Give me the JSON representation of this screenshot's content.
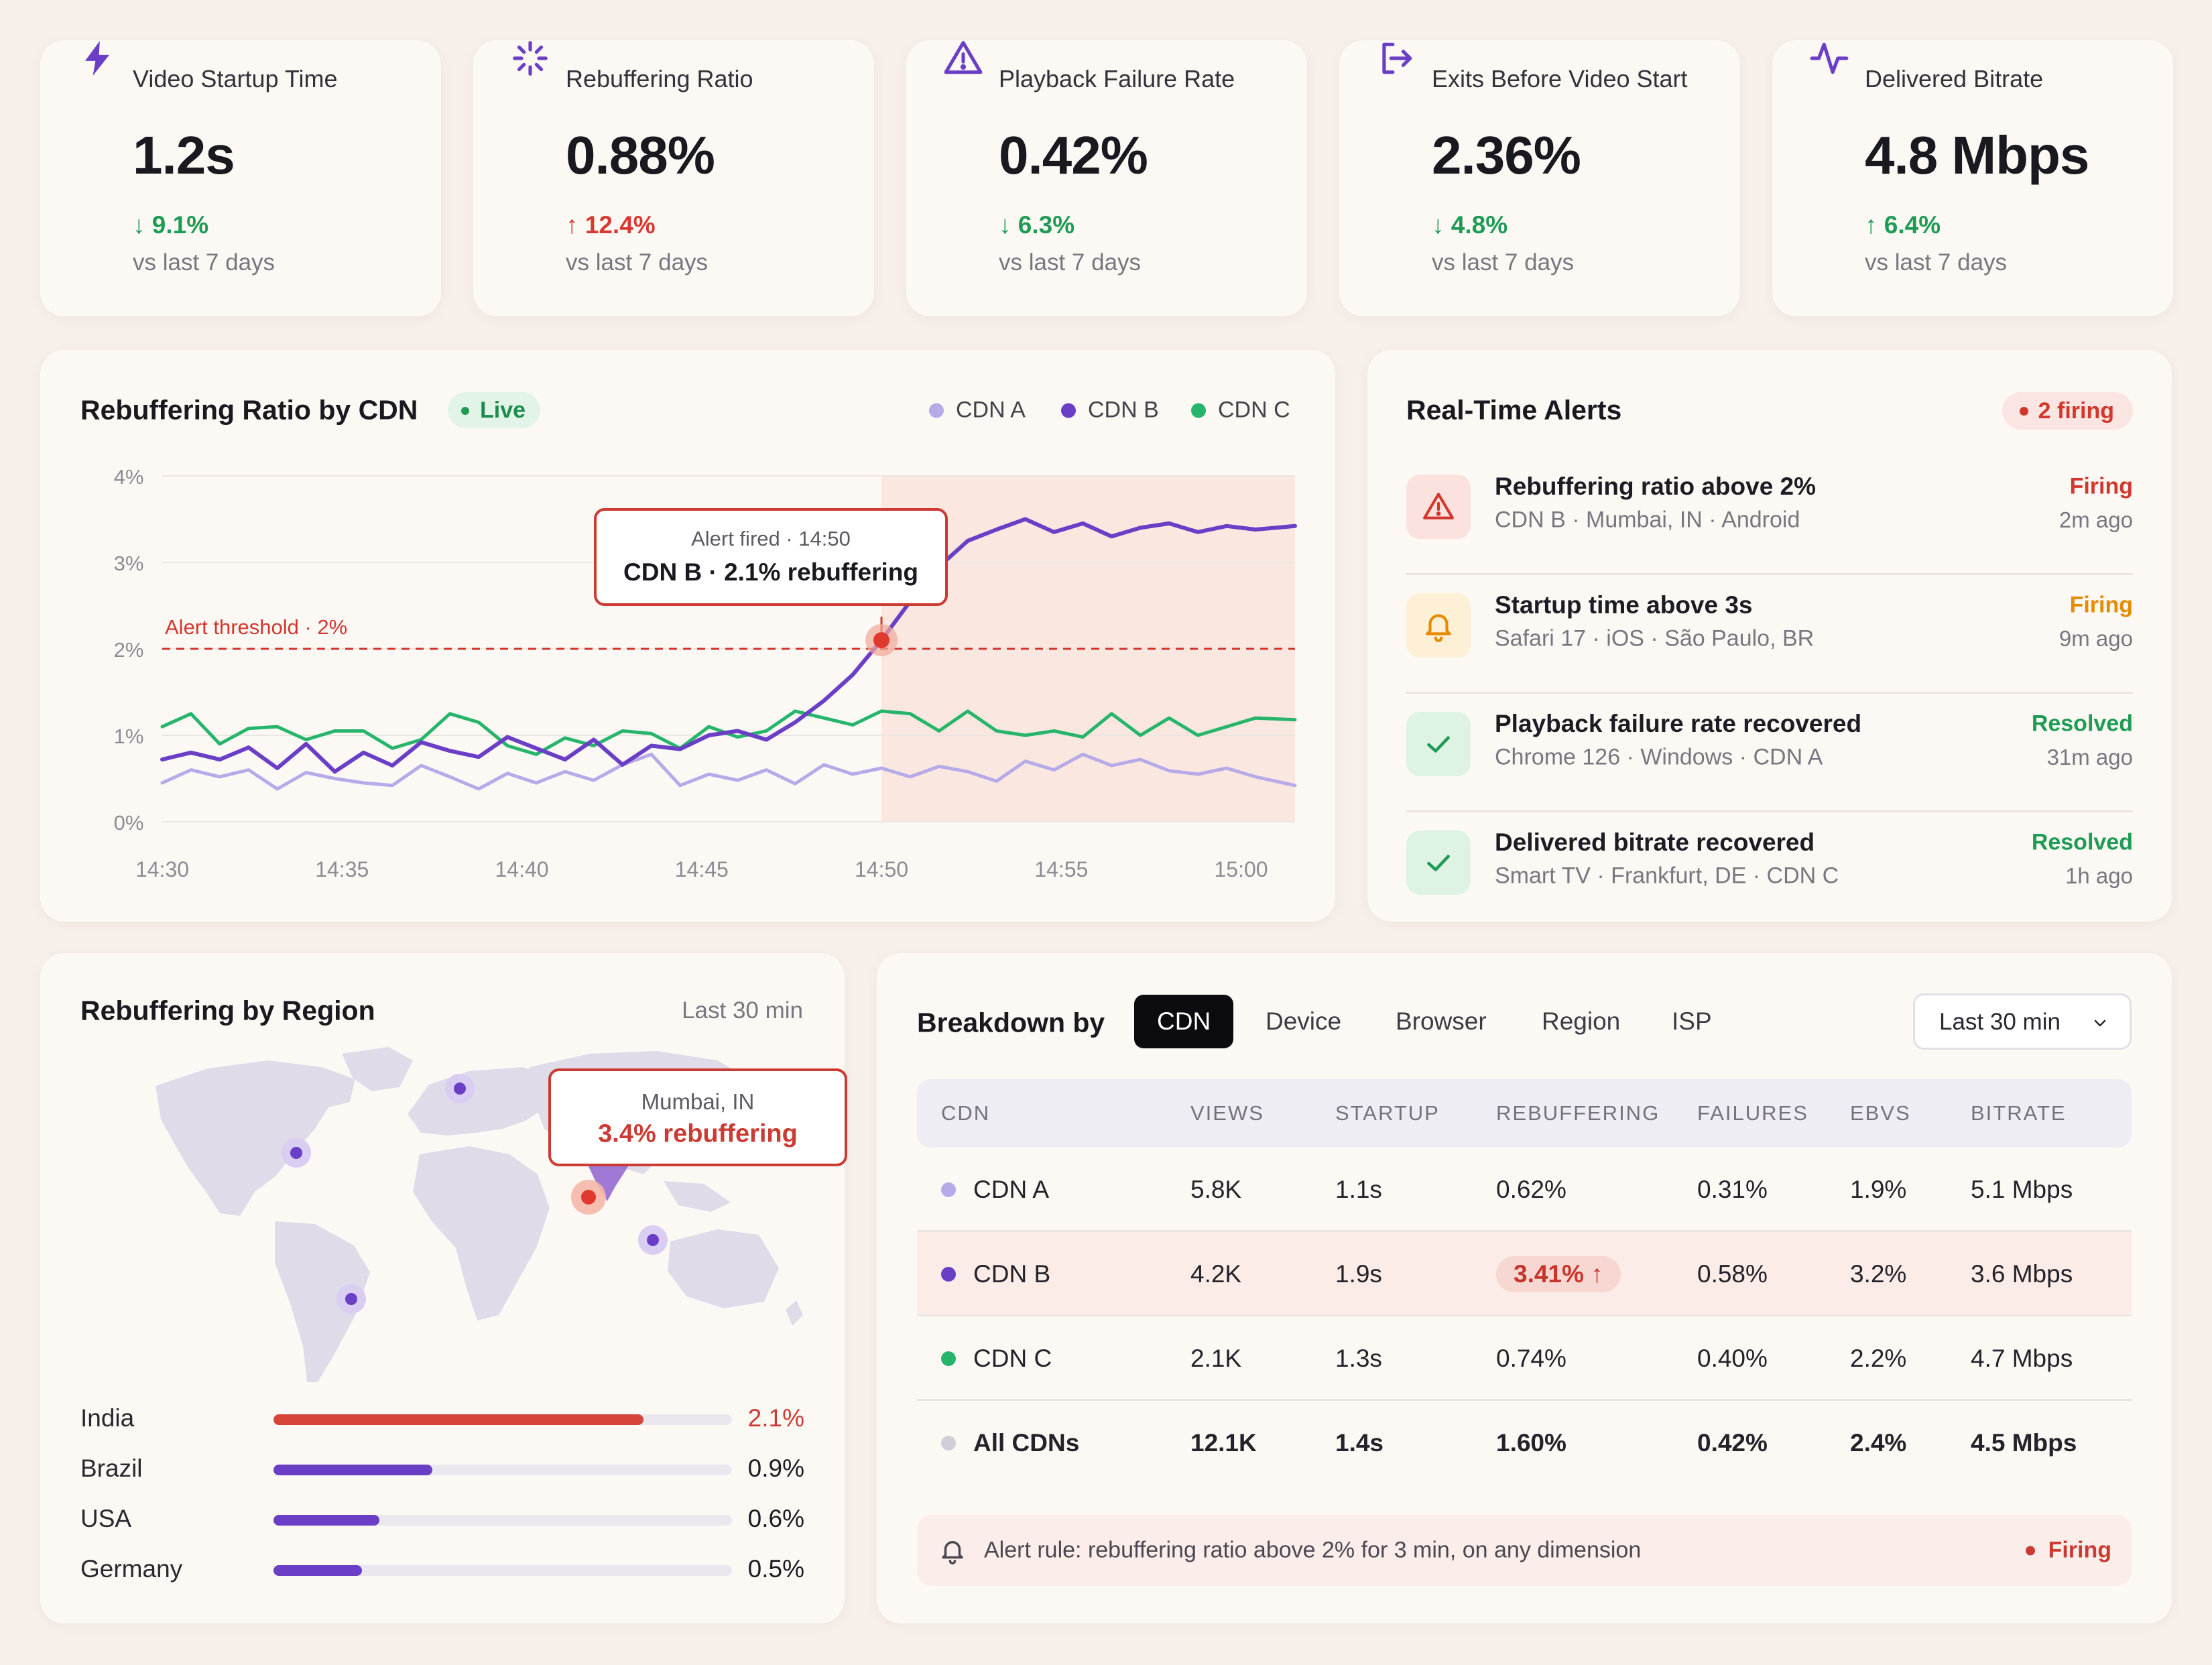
{
  "colors": {
    "cdn_a": "#b7aae8",
    "cdn_b": "#6a3fc6",
    "cdn_c": "#27b56c",
    "alert_red": "#d2372d",
    "good_green": "#1f9b55",
    "warning_orange": "#e68a00",
    "all_cdns_gray": "#d2cdd6"
  },
  "kpis": [
    {
      "icon": "lightning-icon",
      "label": "Video Startup Time",
      "value": "1.2s",
      "delta": "9.1%",
      "direction": "down",
      "sentiment": "good",
      "sub": "vs last 7 days"
    },
    {
      "icon": "spinner-icon",
      "label": "Rebuffering Ratio",
      "value": "0.88%",
      "delta": "12.4%",
      "direction": "up",
      "sentiment": "bad",
      "sub": "vs last 7 days"
    },
    {
      "icon": "warning-triangle-icon",
      "label": "Playback Failure Rate",
      "value": "0.42%",
      "delta": "6.3%",
      "direction": "down",
      "sentiment": "good",
      "sub": "vs last 7 days"
    },
    {
      "icon": "exit-icon",
      "label": "Exits Before Video Start",
      "value": "2.36%",
      "delta": "4.8%",
      "direction": "down",
      "sentiment": "good",
      "sub": "vs last 7 days"
    },
    {
      "icon": "pulse-icon",
      "label": "Delivered Bitrate",
      "value": "4.8 Mbps",
      "delta": "6.4%",
      "direction": "up",
      "sentiment": "good",
      "sub": "vs last 7 days"
    }
  ],
  "chart_card": {
    "title": "Rebuffering Ratio by CDN",
    "live_label": "Live",
    "threshold_label": "Alert threshold · 2%",
    "tooltip_line1": "Alert fired · 14:50",
    "tooltip_line2": "CDN B · 2.1% rebuffering"
  },
  "chart_data": {
    "type": "line",
    "title": "Rebuffering Ratio by CDN",
    "x_label": "",
    "y_label": "",
    "x_ticks": [
      "14:30",
      "14:35",
      "14:40",
      "14:45",
      "14:50",
      "14:55",
      "15:00"
    ],
    "y_ticks": [
      "0%",
      "1%",
      "2%",
      "3%",
      "4%"
    ],
    "x_range_minutes": [
      0,
      31.5
    ],
    "ylim": [
      0,
      4
    ],
    "threshold": 2.0,
    "alert_region_start_minute": 20,
    "alert_point": {
      "minute": 20,
      "value": 2.1
    },
    "legend": [
      "CDN A",
      "CDN B",
      "CDN C"
    ],
    "series": [
      {
        "name": "CDN A",
        "x_minutes": [
          0,
          0.8,
          1.6,
          2.4,
          3.2,
          4,
          4.8,
          5.6,
          6.4,
          7.2,
          8,
          8.8,
          9.6,
          10.4,
          11.2,
          12,
          12.8,
          13.6,
          14.4,
          15.2,
          16,
          16.8,
          17.6,
          18.4,
          19.2,
          20,
          20.8,
          21.6,
          22.4,
          23.2,
          24,
          24.8,
          25.6,
          26.4,
          27.2,
          28,
          28.8,
          29.6,
          30.4,
          31.5
        ],
        "values": [
          0.45,
          0.6,
          0.52,
          0.6,
          0.38,
          0.57,
          0.5,
          0.45,
          0.42,
          0.65,
          0.52,
          0.38,
          0.56,
          0.45,
          0.58,
          0.48,
          0.66,
          0.78,
          0.42,
          0.55,
          0.48,
          0.6,
          0.44,
          0.66,
          0.55,
          0.62,
          0.52,
          0.64,
          0.58,
          0.47,
          0.7,
          0.6,
          0.78,
          0.65,
          0.72,
          0.59,
          0.55,
          0.62,
          0.52,
          0.42
        ]
      },
      {
        "name": "CDN B",
        "x_minutes": [
          0,
          0.8,
          1.6,
          2.4,
          3.2,
          4,
          4.8,
          5.6,
          6.4,
          7.2,
          8,
          8.8,
          9.6,
          10.4,
          11.2,
          12,
          12.8,
          13.6,
          14.4,
          15.2,
          16,
          16.8,
          17.6,
          18.4,
          19.2,
          20,
          20.8,
          21.6,
          22.4,
          23.2,
          24,
          24.8,
          25.6,
          26.4,
          27.2,
          28,
          28.8,
          29.6,
          30.4,
          31.5
        ],
        "values": [
          0.72,
          0.8,
          0.72,
          0.86,
          0.62,
          0.9,
          0.58,
          0.8,
          0.65,
          0.92,
          0.82,
          0.75,
          0.98,
          0.85,
          0.72,
          0.95,
          0.66,
          0.88,
          0.84,
          1.0,
          1.05,
          0.95,
          1.15,
          1.4,
          1.7,
          2.1,
          2.55,
          2.95,
          3.25,
          3.38,
          3.5,
          3.35,
          3.45,
          3.3,
          3.4,
          3.45,
          3.35,
          3.42,
          3.38,
          3.42
        ]
      },
      {
        "name": "CDN C",
        "x_minutes": [
          0,
          0.8,
          1.6,
          2.4,
          3.2,
          4,
          4.8,
          5.6,
          6.4,
          7.2,
          8,
          8.8,
          9.6,
          10.4,
          11.2,
          12,
          12.8,
          13.6,
          14.4,
          15.2,
          16,
          16.8,
          17.6,
          18.4,
          19.2,
          20,
          20.8,
          21.6,
          22.4,
          23.2,
          24,
          24.8,
          25.6,
          26.4,
          27.2,
          28,
          28.8,
          29.6,
          30.4,
          31.5
        ],
        "values": [
          1.1,
          1.25,
          0.9,
          1.08,
          1.1,
          0.95,
          1.05,
          1.05,
          0.85,
          0.95,
          1.25,
          1.15,
          0.88,
          0.78,
          0.97,
          0.88,
          1.05,
          1.02,
          0.85,
          1.1,
          0.98,
          1.05,
          1.28,
          1.2,
          1.12,
          1.28,
          1.25,
          1.05,
          1.28,
          1.05,
          1.0,
          1.05,
          0.98,
          1.25,
          1.0,
          1.2,
          1.0,
          1.1,
          1.2,
          1.18
        ]
      }
    ]
  },
  "alerts_card": {
    "title": "Real-Time Alerts",
    "firing_badge": "2 firing",
    "items": [
      {
        "icon": "warning-triangle-icon",
        "tone": "red",
        "title": "Rebuffering ratio above 2%",
        "sub": "CDN B · Mumbai, IN · Android",
        "status": "Firing",
        "status_color": "#d2372d",
        "time": "2m ago"
      },
      {
        "icon": "bell-icon",
        "tone": "amber",
        "title": "Startup time above 3s",
        "sub": "Safari 17 · iOS · São Paulo, BR",
        "status": "Firing",
        "status_color": "#e68a00",
        "time": "9m ago"
      },
      {
        "icon": "check-icon",
        "tone": "green",
        "title": "Playback failure rate recovered",
        "sub": "Chrome 126 · Windows · CDN A",
        "status": "Resolved",
        "status_color": "#1f9b55",
        "time": "31m ago"
      },
      {
        "icon": "check-icon",
        "tone": "green",
        "title": "Delivered bitrate recovered",
        "sub": "Smart TV · Frankfurt, DE · CDN C",
        "status": "Resolved",
        "status_color": "#1f9b55",
        "time": "1h ago"
      }
    ]
  },
  "region_card": {
    "title": "Rebuffering by Region",
    "range": "Last 30 min",
    "map_tooltip_line1": "Mumbai, IN",
    "map_tooltip_line2": "3.4% rebuffering",
    "bar_max": 2.6,
    "rows": [
      {
        "name": "India",
        "value": 2.1,
        "label": "2.1%",
        "color": "#d7443a",
        "label_color": "#cc3b33"
      },
      {
        "name": "Brazil",
        "value": 0.9,
        "label": "0.9%",
        "color": "#6a3fc6",
        "label_color": "#2a2830"
      },
      {
        "name": "USA",
        "value": 0.6,
        "label": "0.6%",
        "color": "#6a3fc6",
        "label_color": "#2a2830"
      },
      {
        "name": "Germany",
        "value": 0.5,
        "label": "0.5%",
        "color": "#6a3fc6",
        "label_color": "#2a2830"
      }
    ]
  },
  "breakdown_card": {
    "title": "Breakdown by",
    "tabs": [
      "CDN",
      "Device",
      "Browser",
      "Region",
      "ISP"
    ],
    "active_tab": "CDN",
    "range_select": "Last 30 min",
    "columns": [
      "CDN",
      "VIEWS",
      "STARTUP",
      "REBUFFERING",
      "FAILURES",
      "EBVS",
      "BITRATE"
    ],
    "rows": [
      {
        "name": "CDN A",
        "views": "5.8K",
        "startup": "1.1s",
        "rebuffering": "0.62%",
        "failures": "0.31%",
        "ebvs": "1.9%",
        "bitrate": "5.1 Mbps"
      },
      {
        "name": "CDN B",
        "views": "4.2K",
        "startup": "1.9s",
        "rebuffering": "3.41%",
        "failures": "0.58%",
        "ebvs": "3.2%",
        "bitrate": "3.6 Mbps"
      },
      {
        "name": "CDN C",
        "views": "2.1K",
        "startup": "1.3s",
        "rebuffering": "0.74%",
        "failures": "0.40%",
        "ebvs": "2.2%",
        "bitrate": "4.7 Mbps"
      },
      {
        "name": "All CDNs",
        "views": "12.1K",
        "startup": "1.4s",
        "rebuffering": "1.60%",
        "failures": "0.42%",
        "ebvs": "2.4%",
        "bitrate": "4.5 Mbps"
      }
    ],
    "rule_text": "Alert rule: rebuffering ratio above 2% for 3 min, on any dimension",
    "rule_status": "Firing"
  }
}
